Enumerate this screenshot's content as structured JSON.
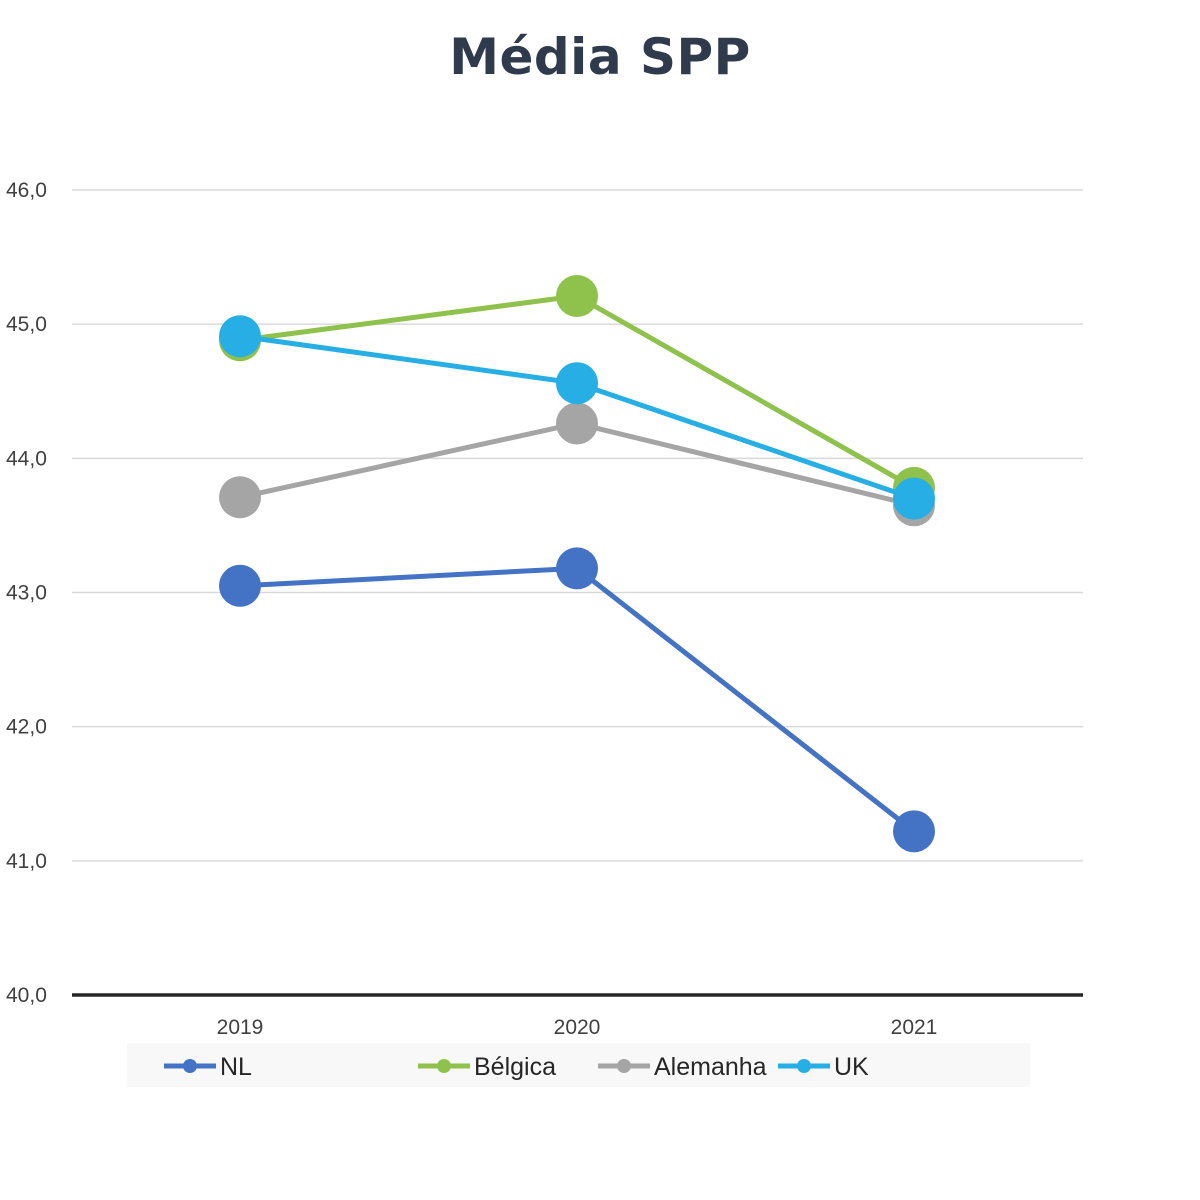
{
  "chart_data": {
    "type": "line",
    "title": "Média SPP",
    "xlabel": "",
    "ylabel": "",
    "categories": [
      "2019",
      "2020",
      "2021"
    ],
    "ylim": [
      40,
      46
    ],
    "yticks": [
      40,
      41,
      42,
      43,
      44,
      45,
      46
    ],
    "ytick_labels": [
      "40,0",
      "41,0",
      "42,0",
      "43,0",
      "44,0",
      "45,0",
      "46,0"
    ],
    "grid": true,
    "legend_position": "bottom",
    "series": [
      {
        "name": "NL",
        "color": "#4472c4",
        "values": [
          43.05,
          43.18,
          41.22
        ]
      },
      {
        "name": "Bélgica",
        "color": "#8fc14d",
        "values": [
          44.88,
          45.21,
          43.78
        ]
      },
      {
        "name": "Alemanha",
        "color": "#a5a5a5",
        "values": [
          43.71,
          44.26,
          43.65
        ]
      },
      {
        "name": "UK",
        "color": "#27aee4",
        "values": [
          44.91,
          44.56,
          43.7
        ]
      }
    ]
  }
}
